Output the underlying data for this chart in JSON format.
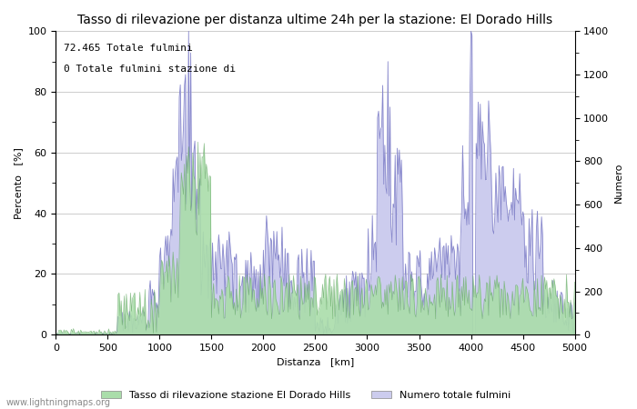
{
  "title": "Tasso di rilevazione per distanza ultime 24h per la stazione: El Dorado Hills",
  "xlabel": "Distanza   [km]",
  "ylabel_left": "Percento   [%]",
  "ylabel_right": "Numero",
  "annotation_line1": "72.465 Totale fulmini",
  "annotation_line2": "0 Totale fulmini stazione di",
  "legend_label1": "Tasso di rilevazione stazione El Dorado Hills",
  "legend_label2": "Numero totale fulmini",
  "watermark": "www.lightningmaps.org",
  "xlim": [
    0,
    5000
  ],
  "ylim_left": [
    0,
    100
  ],
  "ylim_right": [
    0,
    1400
  ],
  "xticks": [
    0,
    500,
    1000,
    1500,
    2000,
    2500,
    3000,
    3500,
    4000,
    4500,
    5000
  ],
  "yticks_left": [
    0,
    20,
    40,
    60,
    80,
    100
  ],
  "yticks_right": [
    0,
    200,
    400,
    600,
    800,
    1000,
    1200,
    1400
  ],
  "color_numero_line": "#8888cc",
  "color_numero_fill": "#ccccee",
  "color_tasso_fill": "#aaddaa",
  "color_tasso_line": "#66aa66",
  "bg_color": "#ffffff",
  "grid_color": "#cccccc",
  "title_fontsize": 10,
  "label_fontsize": 8,
  "tick_fontsize": 8,
  "annotation_fontsize": 8,
  "legend_fontsize": 8
}
